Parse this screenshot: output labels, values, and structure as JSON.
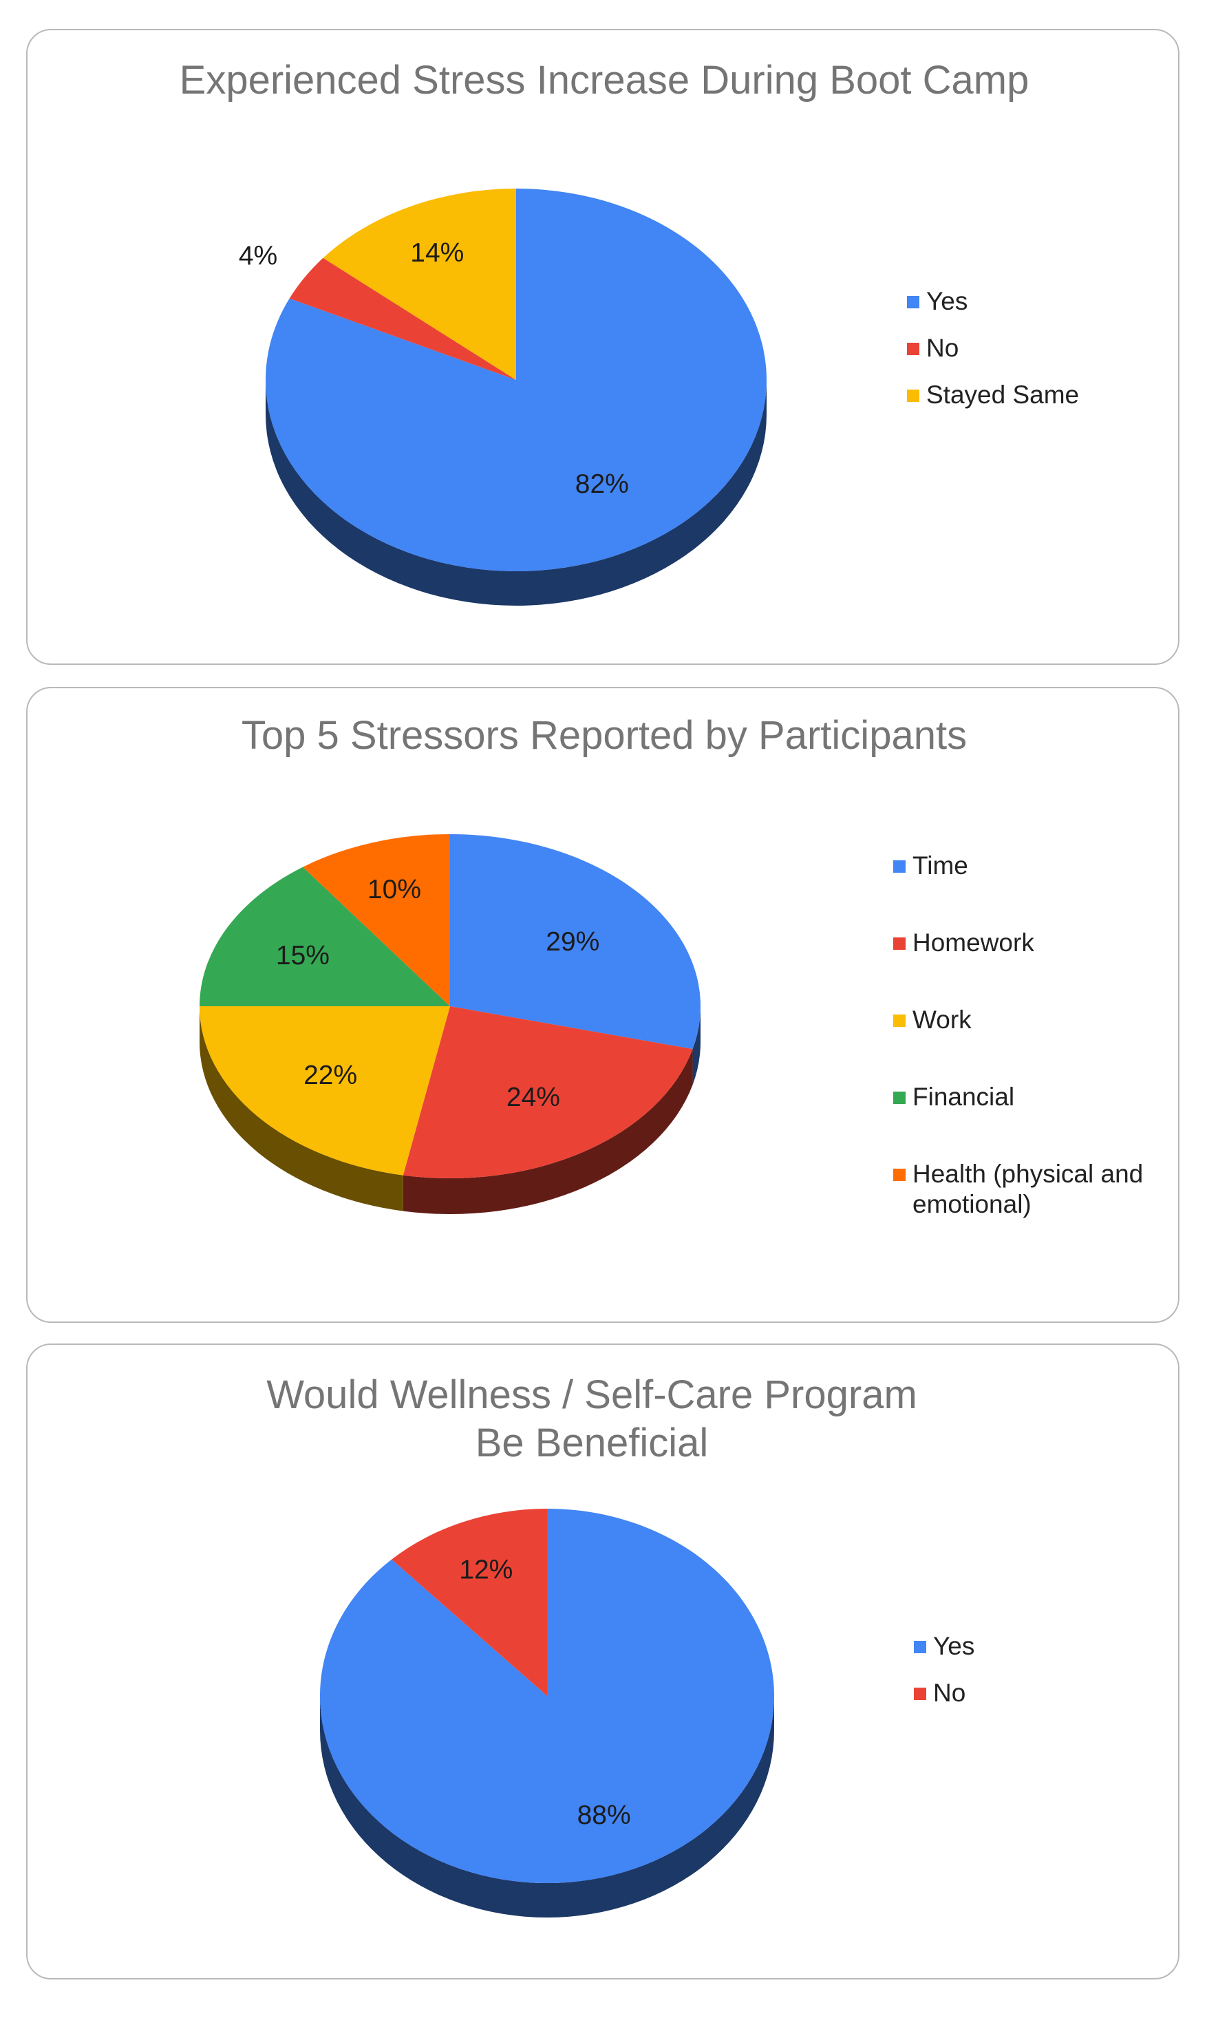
{
  "chart_data": [
    {
      "type": "pie",
      "title": "Experienced Stress Increase During Boot Camp",
      "categories": [
        "Yes",
        "No",
        "Stayed Same"
      ],
      "values": [
        82,
        4,
        14
      ],
      "labels": [
        "82%",
        "4%",
        "14%"
      ],
      "colors": [
        "#4285f4",
        "#ea4335",
        "#fbbc04"
      ],
      "legend_position": "right",
      "style": "3d"
    },
    {
      "type": "pie",
      "title": "Top 5 Stressors Reported by Participants",
      "categories": [
        "Time",
        "Homework",
        "Work",
        "Financial",
        "Health (physical and emotional)"
      ],
      "values": [
        29,
        24,
        22,
        15,
        10
      ],
      "labels": [
        "29%",
        "24%",
        "22%",
        "15%",
        "10%"
      ],
      "colors": [
        "#4285f4",
        "#ea4335",
        "#fbbc04",
        "#34a853",
        "#ff6d01"
      ],
      "legend_position": "right",
      "style": "3d"
    },
    {
      "type": "pie",
      "title": "Would Wellness / Self-Care Program Be Beneficial",
      "categories": [
        "Yes",
        "No"
      ],
      "values": [
        88,
        12
      ],
      "labels": [
        "88%",
        "12%"
      ],
      "colors": [
        "#4285f4",
        "#ea4335"
      ],
      "legend_position": "right",
      "style": "3d"
    }
  ]
}
